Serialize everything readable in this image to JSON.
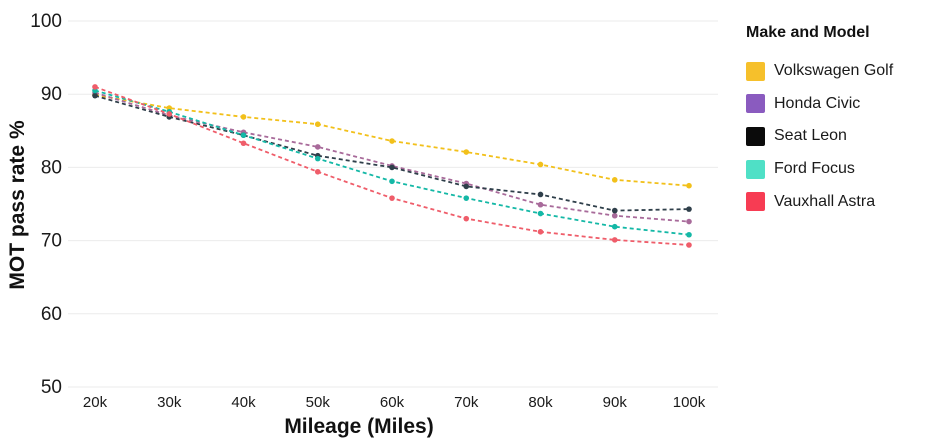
{
  "chart_data": {
    "type": "line",
    "xlabel": "Mileage (Miles)",
    "ylabel": "MOT pass rate %",
    "categories": [
      "20k",
      "30k",
      "40k",
      "50k",
      "60k",
      "70k",
      "80k",
      "90k",
      "100k"
    ],
    "ylim": [
      50,
      100
    ],
    "yticks": [
      "50",
      "60",
      "70",
      "80",
      "90",
      "100"
    ],
    "grid": true,
    "legend_title": "Make and Model",
    "legend_position": "right",
    "series": [
      {
        "name": "Volkswagen Golf",
        "color": "#f6c02b",
        "line_color": "#f2c01a",
        "values": [
          89.9,
          88.1,
          86.9,
          85.9,
          83.6,
          82.1,
          80.4,
          78.3,
          77.5
        ]
      },
      {
        "name": "Honda Civic",
        "color": "#8a5bbf",
        "line_color": "#a86a9a",
        "values": [
          90.2,
          87.1,
          84.8,
          82.8,
          80.2,
          77.8,
          74.9,
          73.4,
          72.6
        ]
      },
      {
        "name": "Seat Leon",
        "color": "#0b0b0b",
        "line_color": "#2f3f4a",
        "values": [
          89.8,
          86.9,
          84.4,
          81.6,
          80.0,
          77.4,
          76.3,
          74.1,
          74.3
        ]
      },
      {
        "name": "Ford Focus",
        "color": "#4fe0c6",
        "line_color": "#14b8a6",
        "values": [
          90.5,
          87.6,
          84.4,
          81.2,
          78.1,
          75.8,
          73.7,
          71.9,
          70.8
        ]
      },
      {
        "name": "Vauxhall Astra",
        "color": "#f73c53",
        "line_color": "#ef5d6a",
        "values": [
          91.0,
          87.3,
          83.3,
          79.4,
          75.8,
          73.0,
          71.2,
          70.1,
          69.4
        ]
      }
    ]
  }
}
